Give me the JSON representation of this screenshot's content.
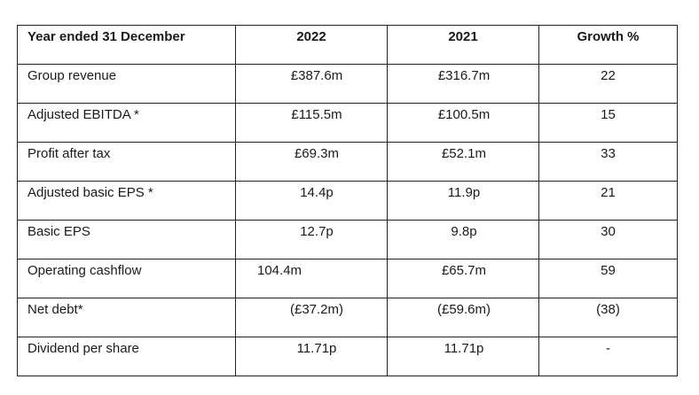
{
  "table": {
    "headers": [
      "Year ended 31 December",
      "2022",
      "2021",
      "Growth %"
    ],
    "rows": [
      {
        "label": "Group revenue",
        "y2022": "£387.6m",
        "y2021": "£316.7m",
        "growth": "22"
      },
      {
        "label": "Adjusted EBITDA *",
        "y2022": "£115.5m",
        "y2021": "£100.5m",
        "growth": "15"
      },
      {
        "label": "Profit after tax",
        "y2022": "£69.3m",
        "y2021": "£52.1m",
        "growth": "33"
      },
      {
        "label": "Adjusted basic EPS *",
        "y2022": "14.4p",
        "y2021": "11.9p",
        "growth": "21"
      },
      {
        "label": "Basic EPS",
        "y2022": "12.7p",
        "y2021": "9.8p",
        "growth": "30"
      },
      {
        "label": "Operating cashflow",
        "y2022": "104.4m",
        "y2021": "£65.7m",
        "growth": "59"
      },
      {
        "label": "Net debt*",
        "y2022": "(£37.2m)",
        "y2021": "(£59.6m)",
        "growth": "(38)"
      },
      {
        "label": "Dividend per share",
        "y2022": "11.71p",
        "y2021": "11.71p",
        "growth": "-"
      }
    ]
  }
}
